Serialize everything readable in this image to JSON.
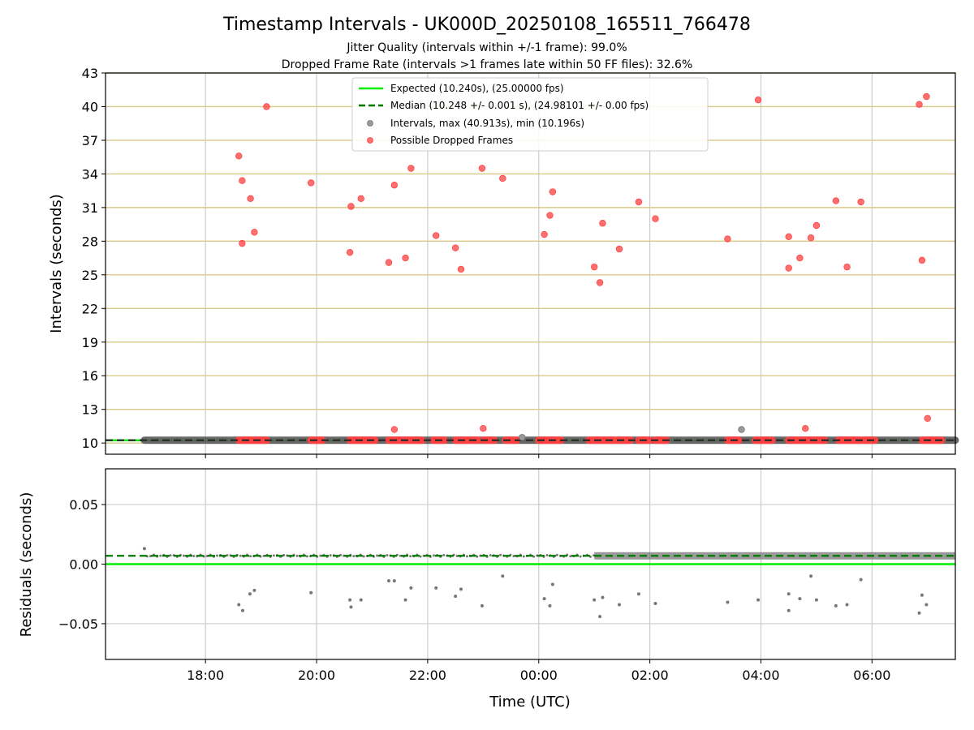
{
  "chart_data": [
    {
      "type": "scatter",
      "title": "Timestamp Intervals - UK000D_20250108_165511_766478",
      "subtitle_1": "Jitter Quality (intervals within +/-1 frame): 99.0%",
      "subtitle_2": "Dropped Frame Rate (intervals >1 frames late within 50 FF files): 32.6%",
      "xlabel": "",
      "ylabel": "Intervals (seconds)",
      "ylim": [
        9,
        43
      ],
      "x_range_hours": [
        16.2,
        31.5
      ],
      "yticks": [
        "10",
        "13",
        "16",
        "19",
        "22",
        "25",
        "28",
        "31",
        "34",
        "37",
        "40",
        "43"
      ],
      "ytick_values": [
        10,
        13,
        16,
        19,
        22,
        25,
        28,
        31,
        34,
        37,
        40,
        43
      ],
      "grid": true,
      "legend_position": "upper center",
      "legend": [
        {
          "label": "Expected (10.240s), (25.00000 fps)",
          "kind": "solid-line",
          "color": "#00ee00"
        },
        {
          "label": "Median (10.248 +/- 0.001 s), (24.98101 +/- 0.00 fps)",
          "kind": "dashed-line",
          "color": "#007a00"
        },
        {
          "label": "Intervals, max (40.913s), min (10.196s)",
          "kind": "marker",
          "color": "#9a9a9a"
        },
        {
          "label": "Possible Dropped Frames",
          "kind": "marker",
          "color": "#ff4040"
        }
      ],
      "expected_line": 10.24,
      "median_line": 10.248,
      "normal_interval_span_hours": [
        16.9,
        31.5
      ],
      "dropped_band_segments_hours": [
        [
          18.6,
          19.1
        ],
        [
          19.9,
          20.1
        ],
        [
          20.6,
          21.05
        ],
        [
          21.3,
          21.9
        ],
        [
          22.1,
          22.3
        ],
        [
          22.5,
          22.9
        ],
        [
          23.0,
          23.2
        ],
        [
          23.4,
          23.6
        ],
        [
          24.0,
          24.4
        ],
        [
          24.9,
          25.35
        ],
        [
          25.4,
          25.65
        ],
        [
          25.8,
          26.0
        ],
        [
          26.1,
          26.3
        ],
        [
          27.4,
          27.6
        ],
        [
          27.9,
          28.2
        ],
        [
          28.5,
          29.15
        ],
        [
          29.4,
          29.8
        ],
        [
          29.85,
          30.05
        ],
        [
          30.9,
          31.25
        ]
      ],
      "dropped_points": [
        {
          "t": 18.6,
          "y": 35.6
        },
        {
          "t": 18.66,
          "y": 33.4
        },
        {
          "t": 18.81,
          "y": 31.8
        },
        {
          "t": 18.66,
          "y": 27.8
        },
        {
          "t": 18.88,
          "y": 28.8
        },
        {
          "t": 19.1,
          "y": 40.0
        },
        {
          "t": 19.9,
          "y": 33.2
        },
        {
          "t": 20.62,
          "y": 31.1
        },
        {
          "t": 20.8,
          "y": 31.8
        },
        {
          "t": 20.6,
          "y": 27.0
        },
        {
          "t": 21.3,
          "y": 26.1
        },
        {
          "t": 21.4,
          "y": 33.0
        },
        {
          "t": 21.6,
          "y": 26.5
        },
        {
          "t": 21.7,
          "y": 34.5
        },
        {
          "t": 22.15,
          "y": 28.5
        },
        {
          "t": 22.5,
          "y": 27.4
        },
        {
          "t": 22.6,
          "y": 25.5
        },
        {
          "t": 22.98,
          "y": 34.5
        },
        {
          "t": 23.35,
          "y": 33.6
        },
        {
          "t": 24.1,
          "y": 28.6
        },
        {
          "t": 24.2,
          "y": 30.3
        },
        {
          "t": 24.25,
          "y": 32.4
        },
        {
          "t": 25.0,
          "y": 25.7
        },
        {
          "t": 25.1,
          "y": 24.3
        },
        {
          "t": 25.15,
          "y": 29.6
        },
        {
          "t": 25.45,
          "y": 27.3
        },
        {
          "t": 25.8,
          "y": 31.5
        },
        {
          "t": 26.1,
          "y": 30.0
        },
        {
          "t": 27.4,
          "y": 28.2
        },
        {
          "t": 27.95,
          "y": 40.6
        },
        {
          "t": 28.5,
          "y": 28.4
        },
        {
          "t": 28.5,
          "y": 25.6
        },
        {
          "t": 28.7,
          "y": 26.5
        },
        {
          "t": 28.9,
          "y": 28.3
        },
        {
          "t": 29.0,
          "y": 29.4
        },
        {
          "t": 29.35,
          "y": 31.6
        },
        {
          "t": 29.55,
          "y": 25.7
        },
        {
          "t": 29.8,
          "y": 31.5
        },
        {
          "t": 30.85,
          "y": 40.2
        },
        {
          "t": 30.9,
          "y": 26.3
        },
        {
          "t": 30.98,
          "y": 40.9
        },
        {
          "t": 31.0,
          "y": 12.2
        },
        {
          "t": 21.4,
          "y": 11.2
        },
        {
          "t": 23.0,
          "y": 11.3
        },
        {
          "t": 28.8,
          "y": 11.3
        }
      ],
      "gray_outlier_points": [
        {
          "t": 23.7,
          "y": 10.5
        },
        {
          "t": 27.65,
          "y": 11.2
        }
      ]
    },
    {
      "type": "scatter",
      "xlabel": "Time (UTC)",
      "ylabel": "Residuals (seconds)",
      "ylim": [
        -0.08,
        0.08
      ],
      "yticks": [
        "0.05",
        "0.00",
        "−0.05"
      ],
      "ytick_values": [
        0.05,
        0.0,
        -0.05
      ],
      "xticks": [
        "18:00",
        "20:00",
        "22:00",
        "00:00",
        "02:00",
        "04:00",
        "06:00"
      ],
      "xtick_values_hours": [
        18,
        20,
        22,
        24,
        26,
        28,
        30
      ],
      "grid": true,
      "expected_line": 0.0,
      "median_line": 0.007,
      "dense_band_span_hours": [
        25.0,
        31.5
      ],
      "residual_points": [
        {
          "t": 16.9,
          "y": 0.013
        },
        {
          "t": 18.6,
          "y": -0.034
        },
        {
          "t": 18.67,
          "y": -0.039
        },
        {
          "t": 18.8,
          "y": -0.025
        },
        {
          "t": 18.88,
          "y": -0.022
        },
        {
          "t": 19.9,
          "y": -0.024
        },
        {
          "t": 20.6,
          "y": -0.03
        },
        {
          "t": 20.62,
          "y": -0.036
        },
        {
          "t": 20.8,
          "y": -0.03
        },
        {
          "t": 21.3,
          "y": -0.014
        },
        {
          "t": 21.4,
          "y": -0.014
        },
        {
          "t": 21.6,
          "y": -0.03
        },
        {
          "t": 21.7,
          "y": -0.02
        },
        {
          "t": 22.15,
          "y": -0.02
        },
        {
          "t": 22.5,
          "y": -0.027
        },
        {
          "t": 22.6,
          "y": -0.021
        },
        {
          "t": 22.98,
          "y": -0.035
        },
        {
          "t": 23.35,
          "y": -0.01
        },
        {
          "t": 24.1,
          "y": -0.029
        },
        {
          "t": 24.2,
          "y": -0.035
        },
        {
          "t": 24.25,
          "y": -0.017
        },
        {
          "t": 25.0,
          "y": -0.03
        },
        {
          "t": 25.1,
          "y": -0.044
        },
        {
          "t": 25.15,
          "y": -0.028
        },
        {
          "t": 25.45,
          "y": -0.034
        },
        {
          "t": 25.8,
          "y": -0.025
        },
        {
          "t": 26.1,
          "y": -0.033
        },
        {
          "t": 27.4,
          "y": -0.032
        },
        {
          "t": 27.95,
          "y": -0.03
        },
        {
          "t": 28.5,
          "y": -0.025
        },
        {
          "t": 28.5,
          "y": -0.039
        },
        {
          "t": 28.7,
          "y": -0.029
        },
        {
          "t": 28.9,
          "y": -0.01
        },
        {
          "t": 29.0,
          "y": -0.03
        },
        {
          "t": 29.35,
          "y": -0.035
        },
        {
          "t": 29.55,
          "y": -0.034
        },
        {
          "t": 29.8,
          "y": -0.013
        },
        {
          "t": 30.85,
          "y": -0.041
        },
        {
          "t": 30.9,
          "y": -0.026
        },
        {
          "t": 30.98,
          "y": -0.034
        }
      ]
    }
  ],
  "colors": {
    "expected": "#00ee00",
    "median": "#007a00",
    "median_band": "#595959",
    "interval_marker": "#9a9a9a",
    "dropped_marker": "#ff4040",
    "h_grid_top": "#d9c98a",
    "v_grid": "#cccccc",
    "h_grid_bottom": "#cccccc",
    "residual_marker": "#777777"
  }
}
